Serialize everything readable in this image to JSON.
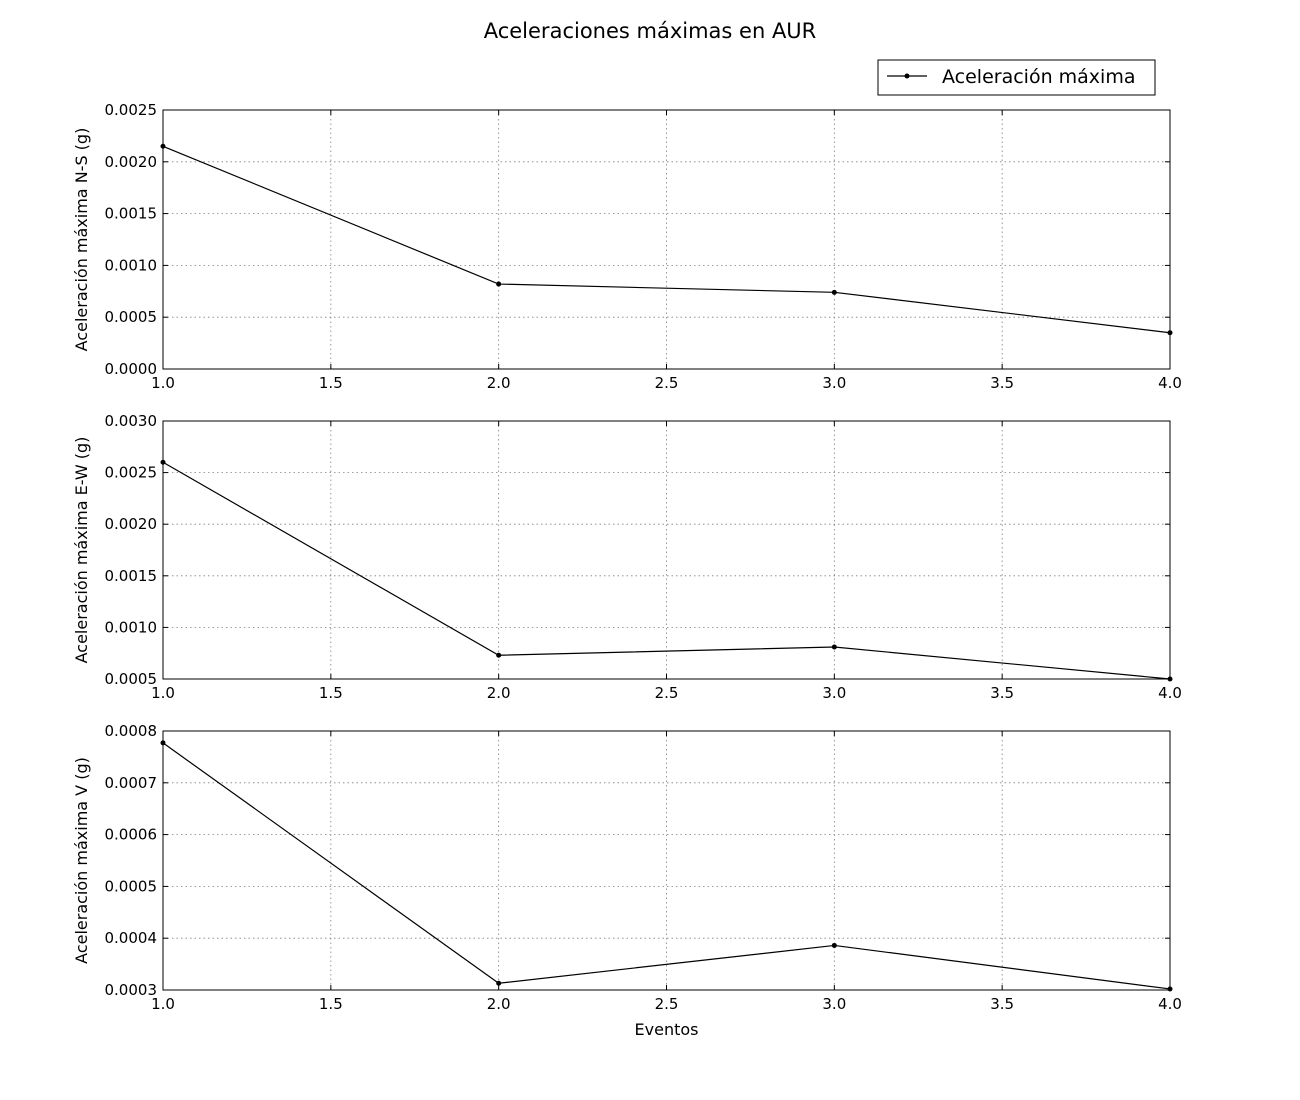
{
  "figure": {
    "title": "Aceleraciones máximas en AUR"
  },
  "legend": {
    "label": "Aceleración máxima",
    "placement": "top-right"
  },
  "style": {
    "line_color": "#000000",
    "grid_color": "#808080",
    "background": "#ffffff"
  },
  "chart_data": [
    {
      "type": "line",
      "title": "",
      "xlabel": "",
      "ylabel": "Aceleración máxima N-S (g)",
      "xlim": [
        1.0,
        4.0
      ],
      "ylim": [
        0.0,
        0.0025
      ],
      "grid": true,
      "xticks": [
        "1.0",
        "1.5",
        "2.0",
        "2.5",
        "3.0",
        "3.5",
        "4.0"
      ],
      "yticks": [
        "0.0000",
        "0.0005",
        "0.0010",
        "0.0015",
        "0.0020",
        "0.0025"
      ],
      "series": [
        {
          "x": [
            1,
            2,
            3,
            4
          ],
          "y": [
            0.00215,
            0.00082,
            0.00074,
            0.00035
          ]
        }
      ]
    },
    {
      "type": "line",
      "title": "",
      "xlabel": "",
      "ylabel": "Aceleración máxima E-W (g)",
      "xlim": [
        1.0,
        4.0
      ],
      "ylim": [
        0.0005,
        0.003
      ],
      "grid": true,
      "xticks": [
        "1.0",
        "1.5",
        "2.0",
        "2.5",
        "3.0",
        "3.5",
        "4.0"
      ],
      "yticks": [
        "0.0005",
        "0.0010",
        "0.0015",
        "0.0020",
        "0.0025",
        "0.0030"
      ],
      "series": [
        {
          "x": [
            1,
            2,
            3,
            4
          ],
          "y": [
            0.0026,
            0.00073,
            0.00081,
            0.0005
          ]
        }
      ]
    },
    {
      "type": "line",
      "title": "",
      "xlabel": "Eventos",
      "ylabel": "Aceleración máxima V (g)",
      "xlim": [
        1.0,
        4.0
      ],
      "ylim": [
        0.0003,
        0.0008
      ],
      "grid": true,
      "xticks": [
        "1.0",
        "1.5",
        "2.0",
        "2.5",
        "3.0",
        "3.5",
        "4.0"
      ],
      "yticks": [
        "0.0003",
        "0.0004",
        "0.0005",
        "0.0006",
        "0.0007",
        "0.0008"
      ],
      "series": [
        {
          "x": [
            1,
            2,
            3,
            4
          ],
          "y": [
            0.000777,
            0.000313,
            0.000386,
            0.000302
          ]
        }
      ]
    }
  ]
}
